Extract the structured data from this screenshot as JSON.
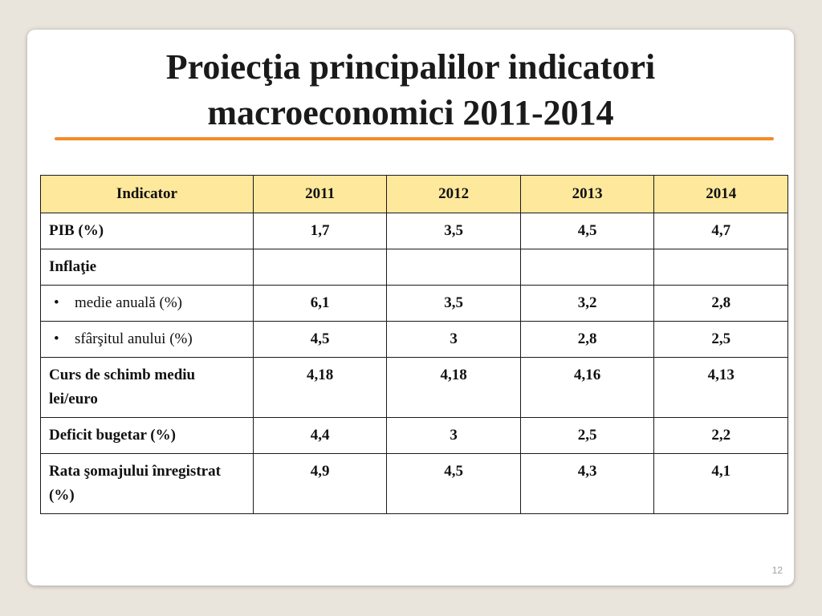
{
  "slide": {
    "title_line1": "Proiecţia principalilor indicatori",
    "title_line2": "macroeconomici 2011-2014",
    "page_number": "12",
    "accent_color": "#f28c28",
    "header_fill": "#fde89c"
  },
  "table": {
    "headers": [
      "Indicator",
      "2011",
      "2012",
      "2013",
      "2014"
    ],
    "rows": [
      {
        "label": "PIB (%)",
        "bullet": "",
        "values": [
          "1,7",
          "3,5",
          "4,5",
          "4,7"
        ]
      },
      {
        "label": "Inflaţie",
        "bullet": "",
        "values": [
          "",
          "",
          "",
          ""
        ]
      },
      {
        "label": "medie anuală (%)",
        "bullet": "•",
        "values": [
          "6,1",
          "3,5",
          "3,2",
          "2,8"
        ]
      },
      {
        "label": "sfârşitul anului (%)",
        "bullet": "•",
        "values": [
          "4,5",
          "3",
          "2,8",
          "2,5"
        ]
      },
      {
        "label": "Curs de schimb mediu lei/euro",
        "bullet": "",
        "values": [
          "4,18",
          "4,18",
          "4,16",
          "4,13"
        ]
      },
      {
        "label": "Deficit bugetar (%)",
        "bullet": "",
        "values": [
          "4,4",
          "3",
          "2,5",
          "2,2"
        ]
      },
      {
        "label": "Rata şomajului înregistrat (%)",
        "bullet": "",
        "values": [
          "4,9",
          "4,5",
          "4,3",
          "4,1"
        ]
      }
    ]
  }
}
